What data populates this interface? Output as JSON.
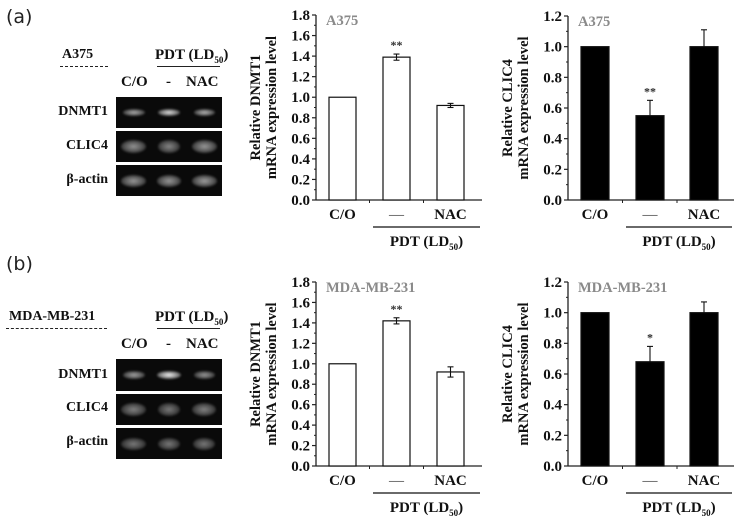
{
  "panels": [
    {
      "letter": "(a)",
      "cell_line": "A375",
      "treatment_header": "PDT (LD",
      "treatment_sub": "50",
      "treatment_close": ")",
      "lanes": [
        "C/O",
        "-",
        "NAC"
      ],
      "gel_rows": [
        {
          "label": "DNMT1",
          "bands": [
            0.55,
            0.85,
            0.6
          ],
          "width": [
            0.62,
            0.62,
            0.6
          ],
          "height": 7
        },
        {
          "label": "CLIC4",
          "bands": [
            0.42,
            0.35,
            0.45
          ],
          "width": [
            0.72,
            0.6,
            0.72
          ],
          "height": 13
        },
        {
          "label": "β-actin",
          "bands": [
            0.45,
            0.45,
            0.48
          ],
          "width": [
            0.72,
            0.7,
            0.72
          ],
          "height": 12
        }
      ]
    },
    {
      "letter": "(b)",
      "cell_line": "MDA-MB-231",
      "treatment_header": "PDT (LD",
      "treatment_sub": "50",
      "treatment_close": ")",
      "lanes": [
        "C/O",
        "-",
        "NAC"
      ],
      "gel_rows": [
        {
          "label": "DNMT1",
          "bands": [
            0.5,
            0.95,
            0.45
          ],
          "width": [
            0.62,
            0.68,
            0.58
          ],
          "height": 8
        },
        {
          "label": "CLIC4",
          "bands": [
            0.33,
            0.28,
            0.33
          ],
          "width": [
            0.7,
            0.62,
            0.68
          ],
          "height": 13
        },
        {
          "label": "β-actin",
          "bands": [
            0.28,
            0.28,
            0.28
          ],
          "width": [
            0.7,
            0.62,
            0.62
          ],
          "height": 12
        }
      ]
    }
  ],
  "chart_data": [
    {
      "id": "a-dnmt1",
      "type": "bar",
      "title": "A375",
      "categories": [
        "C/O",
        "—",
        "NAC"
      ],
      "group_label": "PDT (LD50)",
      "values": [
        1.0,
        1.39,
        0.92
      ],
      "errors": [
        0.0,
        0.03,
        0.02
      ],
      "significance": [
        "",
        "**",
        ""
      ],
      "bar_fill": "#ffffff",
      "ylabel_line1": "Relative DNMT1",
      "ylabel_line2": "mRNA expression level",
      "ylim": [
        0,
        1.8
      ],
      "yticks": [
        0.0,
        0.2,
        0.4,
        0.6,
        0.8,
        1.0,
        1.2,
        1.4,
        1.6,
        1.8
      ],
      "tick_labels": [
        "0.0",
        "0.2",
        "0.4",
        "0.6",
        "0.8",
        "1.0",
        "1.2",
        "1.4",
        "1.6",
        "1.8"
      ],
      "grid": false
    },
    {
      "id": "a-clic4",
      "type": "bar",
      "title": "A375",
      "categories": [
        "C/O",
        "—",
        "NAC"
      ],
      "group_label": "PDT (LD50)",
      "values": [
        1.0,
        0.55,
        1.0
      ],
      "errors": [
        0.0,
        0.1,
        0.11
      ],
      "significance": [
        "",
        "**",
        ""
      ],
      "bar_fill": "#000000",
      "ylabel_line1": "Relative CLIC4",
      "ylabel_line2": "mRNA expression level",
      "ylim": [
        0,
        1.2
      ],
      "yticks": [
        0.0,
        0.2,
        0.4,
        0.6,
        0.8,
        1.0,
        1.2
      ],
      "tick_labels": [
        "0.0",
        "0.2",
        "0.4",
        "0.6",
        "0.8",
        "1.0",
        "1.2"
      ],
      "grid": false
    },
    {
      "id": "b-dnmt1",
      "type": "bar",
      "title": "MDA-MB-231",
      "categories": [
        "C/O",
        "—",
        "NAC"
      ],
      "group_label": "PDT (LD50)",
      "values": [
        1.0,
        1.42,
        0.92
      ],
      "errors": [
        0.0,
        0.03,
        0.05
      ],
      "significance": [
        "",
        "**",
        ""
      ],
      "bar_fill": "#ffffff",
      "ylabel_line1": "Relative DNMT1",
      "ylabel_line2": "mRNA expression level",
      "ylim": [
        0,
        1.8
      ],
      "yticks": [
        0.0,
        0.2,
        0.4,
        0.6,
        0.8,
        1.0,
        1.2,
        1.4,
        1.6,
        1.8
      ],
      "tick_labels": [
        "0.0",
        "0.2",
        "0.4",
        "0.6",
        "0.8",
        "1.0",
        "1.2",
        "1.4",
        "1.6",
        "1.8"
      ],
      "grid": false
    },
    {
      "id": "b-clic4",
      "type": "bar",
      "title": "MDA-MB-231",
      "categories": [
        "C/O",
        "—",
        "NAC"
      ],
      "group_label": "PDT (LD50)",
      "values": [
        1.0,
        0.68,
        1.0
      ],
      "errors": [
        0.0,
        0.1,
        0.07
      ],
      "significance": [
        "",
        "*",
        ""
      ],
      "bar_fill": "#000000",
      "ylabel_line1": "Relative CLIC4",
      "ylabel_line2": "mRNA expression level",
      "ylim": [
        0,
        1.2
      ],
      "yticks": [
        0.0,
        0.2,
        0.4,
        0.6,
        0.8,
        1.0,
        1.2
      ],
      "tick_labels": [
        "0.0",
        "0.2",
        "0.4",
        "0.6",
        "0.8",
        "1.0",
        "1.2"
      ],
      "grid": false
    }
  ],
  "colors": {
    "inset_title": "#8a8a8a",
    "axis": "#222222",
    "gel_bg": "#0a0a0a"
  }
}
